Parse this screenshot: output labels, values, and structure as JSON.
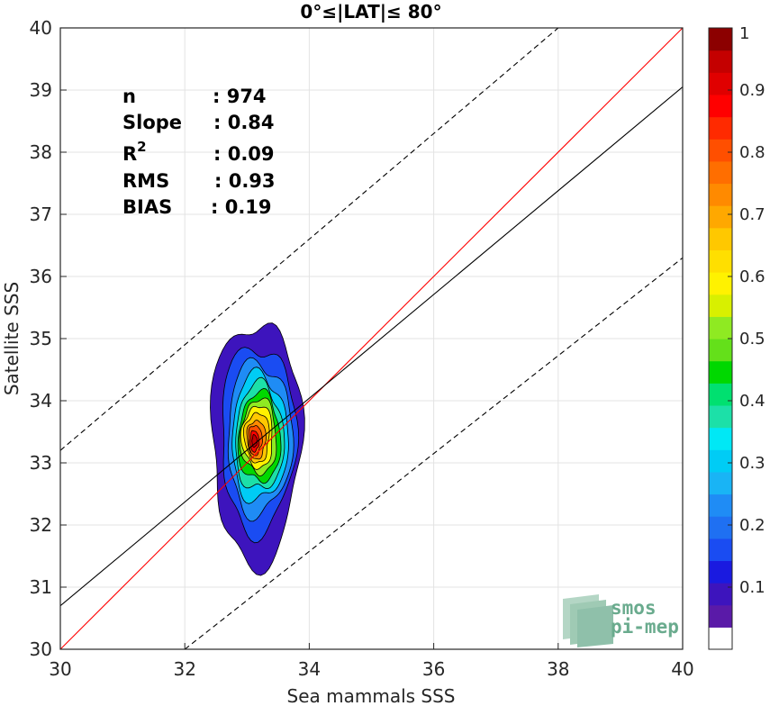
{
  "chart_data": {
    "type": "contour",
    "title": "0°≤|LAT|≤ 80°",
    "xlabel": "Sea mammals SSS",
    "ylabel": "Satellite SSS",
    "xlim": [
      30,
      40
    ],
    "ylim": [
      30,
      40
    ],
    "xticks": [
      "30",
      "32",
      "34",
      "36",
      "38",
      "40"
    ],
    "yticks": [
      "30",
      "31",
      "32",
      "33",
      "34",
      "35",
      "36",
      "37",
      "38",
      "39",
      "40"
    ],
    "grid": true,
    "stats": [
      {
        "label": "n",
        "value": ": 974"
      },
      {
        "label": "Slope",
        "value": ": 0.84"
      },
      {
        "label": "R",
        "sup": "2",
        "value": ": 0.09"
      },
      {
        "label": "RMS",
        "value": ": 0.93"
      },
      {
        "label": "BIAS",
        "value": ": 0.19"
      }
    ],
    "lines": [
      {
        "name": "identity",
        "color": "#ff0000",
        "style": "solid",
        "points": [
          [
            30,
            30
          ],
          [
            40,
            40
          ]
        ]
      },
      {
        "name": "regression",
        "color": "#000000",
        "style": "solid",
        "points": [
          [
            30,
            30.7
          ],
          [
            40,
            39.05
          ]
        ]
      },
      {
        "name": "upper",
        "color": "#000000",
        "style": "dashed",
        "points": [
          [
            30,
            33.2
          ],
          [
            38,
            40
          ]
        ]
      },
      {
        "name": "lower",
        "color": "#000000",
        "style": "dashed",
        "points": [
          [
            32,
            30
          ],
          [
            40,
            36.3
          ]
        ]
      }
    ],
    "density_center": {
      "x": 33.15,
      "y": 33.35
    },
    "contour_levels": [
      {
        "level": 0.05,
        "color": "#3d14bd",
        "rx": 0.72,
        "ry": 1.95,
        "dx": 0.0,
        "dy": 0.0
      },
      {
        "level": 0.15,
        "color": "#1a4cf2",
        "rx": 0.6,
        "ry": 1.5,
        "dx": 0.03,
        "dy": 0.05
      },
      {
        "level": 0.25,
        "color": "#1f8cf5",
        "rx": 0.52,
        "ry": 1.22,
        "dx": 0.05,
        "dy": 0.05
      },
      {
        "level": 0.35,
        "color": "#00ccf5",
        "rx": 0.45,
        "ry": 1.02,
        "dx": 0.05,
        "dy": 0.05
      },
      {
        "level": 0.45,
        "color": "#1ce0a8",
        "rx": 0.39,
        "ry": 0.86,
        "dx": 0.05,
        "dy": 0.05
      },
      {
        "level": 0.55,
        "color": "#00d800",
        "rx": 0.34,
        "ry": 0.72,
        "dx": 0.05,
        "dy": 0.05
      },
      {
        "level": 0.6,
        "color": "#8fea22",
        "rx": 0.29,
        "ry": 0.6,
        "dx": 0.04,
        "dy": 0.07
      },
      {
        "level": 0.65,
        "color": "#fff200",
        "rx": 0.25,
        "ry": 0.5,
        "dx": 0.02,
        "dy": 0.07
      },
      {
        "level": 0.7,
        "color": "#ffc800",
        "rx": 0.2,
        "ry": 0.4,
        "dx": 0.01,
        "dy": 0.06
      },
      {
        "level": 0.8,
        "color": "#ff8a00",
        "rx": 0.15,
        "ry": 0.31,
        "dx": 0.0,
        "dy": 0.03
      },
      {
        "level": 0.85,
        "color": "#ff4f00",
        "rx": 0.11,
        "ry": 0.24,
        "dx": -0.02,
        "dy": 0.02
      },
      {
        "level": 0.9,
        "color": "#ff0000",
        "rx": 0.07,
        "ry": 0.17,
        "dx": -0.03,
        "dy": 0.0
      },
      {
        "level": 0.95,
        "color": "#c40000",
        "rx": 0.04,
        "ry": 0.1,
        "dx": -0.03,
        "dy": 0.0
      }
    ],
    "colorbar": {
      "range": [
        0,
        1
      ],
      "ticks": [
        "0.1",
        "0.2",
        "0.3",
        "0.4",
        "0.5",
        "0.6",
        "0.7",
        "0.8",
        "0.9",
        "1"
      ],
      "tick_values": [
        0.1,
        0.2,
        0.3,
        0.4,
        0.5,
        0.6,
        0.7,
        0.8,
        0.9,
        1.0
      ],
      "colors": [
        "#ffffff",
        "#5a1aa8",
        "#3d14bd",
        "#1a1ae0",
        "#1a4cf2",
        "#1f70f2",
        "#1f8cf5",
        "#19b4f5",
        "#00ccf5",
        "#00e8f5",
        "#1ce0a8",
        "#00e070",
        "#00d800",
        "#64e01a",
        "#8fea22",
        "#d8f000",
        "#fff200",
        "#ffdf00",
        "#ffc800",
        "#ffa800",
        "#ff8a00",
        "#ff6e00",
        "#ff4f00",
        "#ff2a00",
        "#ff0000",
        "#e00000",
        "#c40000",
        "#8c0000"
      ]
    }
  },
  "logo": {
    "line1": "smos",
    "line2": "pi-mep",
    "color": "#6aab8e"
  }
}
